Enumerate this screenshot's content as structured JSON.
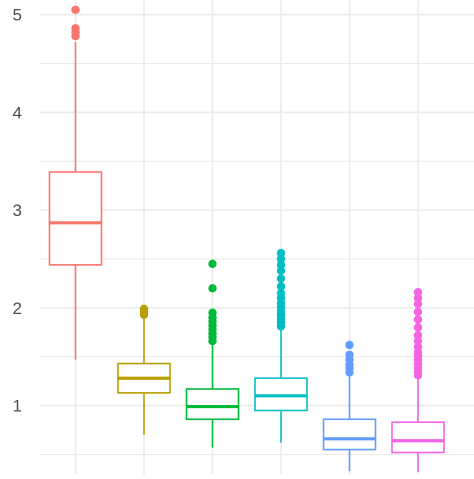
{
  "chart_data": {
    "type": "boxplot",
    "title": "",
    "xlabel": "",
    "ylabel": "",
    "ylim": [
      0.3,
      5.15
    ],
    "y_ticks": [
      1,
      2,
      3,
      4,
      5
    ],
    "y_tick_labels": [
      "1",
      "2",
      "3",
      "4",
      "5"
    ],
    "grid": true,
    "legend": "none",
    "boxes": [
      {
        "color": "#F8766D",
        "whisker_low": 1.47,
        "q1": 2.44,
        "median": 2.87,
        "q3": 3.39,
        "whisker_high": 4.72,
        "outliers": [
          4.78,
          4.82,
          4.86,
          5.05
        ]
      },
      {
        "color": "#B79F00",
        "whisker_low": 0.7,
        "q1": 1.13,
        "median": 1.28,
        "q3": 1.43,
        "whisker_high": 1.9,
        "outliers": [
          1.93,
          1.96,
          1.99
        ]
      },
      {
        "color": "#00BA38",
        "whisker_low": 0.57,
        "q1": 0.86,
        "median": 0.99,
        "q3": 1.17,
        "whisker_high": 1.62,
        "outliers": [
          1.66,
          1.7,
          1.74,
          1.78,
          1.82,
          1.86,
          1.9,
          1.95,
          2.2,
          2.45
        ]
      },
      {
        "color": "#00BFC4",
        "whisker_low": 0.62,
        "q1": 0.95,
        "median": 1.1,
        "q3": 1.28,
        "whisker_high": 1.77,
        "outliers": [
          1.81,
          1.85,
          1.89,
          1.93,
          1.97,
          2.01,
          2.05,
          2.1,
          2.15,
          2.22,
          2.3,
          2.38,
          2.44,
          2.5,
          2.56
        ]
      },
      {
        "color": "#619CFF",
        "whisker_low": 0.33,
        "q1": 0.55,
        "median": 0.66,
        "q3": 0.86,
        "whisker_high": 1.3,
        "outliers": [
          1.34,
          1.38,
          1.42,
          1.47,
          1.52,
          1.62
        ]
      },
      {
        "color": "#F564E3",
        "whisker_low": 0.32,
        "q1": 0.52,
        "median": 0.64,
        "q3": 0.83,
        "whisker_high": 1.27,
        "outliers": [
          1.31,
          1.35,
          1.39,
          1.43,
          1.47,
          1.51,
          1.55,
          1.6,
          1.66,
          1.72,
          1.8,
          1.88,
          1.96,
          2.04,
          2.1,
          2.16
        ]
      }
    ],
    "colors": {
      "background": "#ffffff",
      "grid": "#ebebeb",
      "tick_text": "#4d4d4d"
    }
  }
}
